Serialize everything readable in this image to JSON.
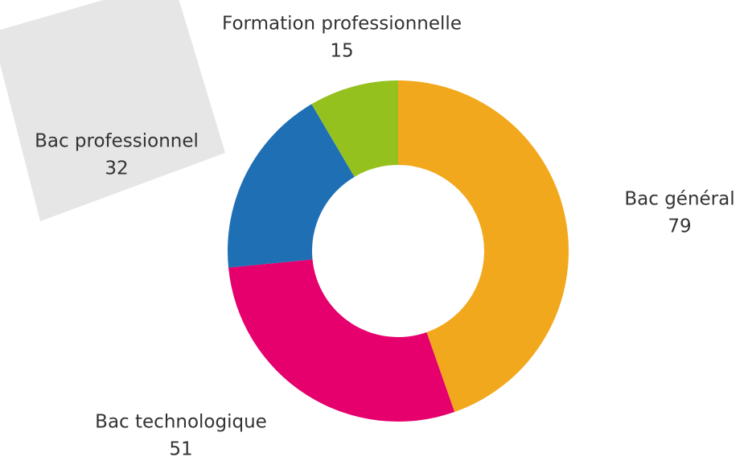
{
  "chart_data": {
    "type": "donut",
    "categories": [
      "Bac général",
      "Bac technologique",
      "Bac professionnel",
      "Formation professionnelle"
    ],
    "values": [
      79,
      51,
      32,
      15
    ],
    "colors": [
      "#f2a81d",
      "#e5006d",
      "#1f6fb5",
      "#95c11f"
    ]
  }
}
